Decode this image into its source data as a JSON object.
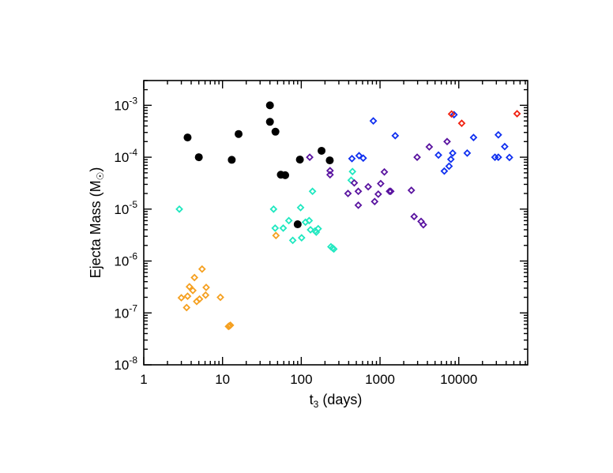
{
  "chart_data": {
    "type": "scatter",
    "title": "",
    "xlabel": "t",
    "xlabel_sub": "3",
    "xlabel_suffix": " (days)",
    "ylabel": "Ejecta Mass (M",
    "ylabel_sub": "☉",
    "ylabel_suffix": ")",
    "xscale": "log",
    "yscale": "log",
    "xlim": [
      1,
      75000
    ],
    "ylim": [
      1e-08,
      0.003
    ],
    "grid": false,
    "xticks": [
      {
        "value": 1,
        "label": "1"
      },
      {
        "value": 10,
        "label": "10"
      },
      {
        "value": 100,
        "label": "100"
      },
      {
        "value": 1000,
        "label": "1000"
      },
      {
        "value": 10000,
        "label": "10000"
      }
    ],
    "yticks": [
      {
        "value": 1e-08,
        "base": "10",
        "exp": "-8"
      },
      {
        "value": 1e-07,
        "base": "10",
        "exp": "-7"
      },
      {
        "value": 1e-06,
        "base": "10",
        "exp": "-6"
      },
      {
        "value": 1e-05,
        "base": "10",
        "exp": "-5"
      },
      {
        "value": 0.0001,
        "base": "10",
        "exp": "-4"
      },
      {
        "value": 0.001,
        "base": "10",
        "exp": "-3"
      }
    ],
    "series": [
      {
        "marker": "filled-circle",
        "color": "#000000",
        "points": [
          [
            3.6,
            0.00024
          ],
          [
            5.0,
            0.0001
          ],
          [
            13.1,
            8.9e-05
          ],
          [
            16,
            0.00028
          ],
          [
            40,
            0.001
          ],
          [
            40,
            0.00048
          ],
          [
            47,
            0.00031
          ],
          [
            55,
            4.6e-05
          ],
          [
            62.5,
            4.5e-05
          ],
          [
            96,
            9e-05
          ],
          [
            90,
            5.1e-06
          ],
          [
            181,
            0.000133
          ],
          [
            230,
            8.7e-05
          ]
        ]
      },
      {
        "marker": "open-diamond",
        "color": "#f5a020",
        "points": [
          [
            47.7,
            3.1e-06
          ],
          [
            5.5,
            7e-07
          ],
          [
            4.4,
            4.8e-07
          ],
          [
            3.8,
            3.2e-07
          ],
          [
            4.2,
            2.7e-07
          ],
          [
            6.2,
            3.1e-07
          ],
          [
            3.0,
            1.96e-07
          ],
          [
            3.6,
            2.1e-07
          ],
          [
            6.1,
            2.2e-07
          ],
          [
            4.7,
            1.66e-07
          ],
          [
            5.1,
            1.85e-07
          ],
          [
            3.5,
            1.27e-07
          ],
          [
            9.4,
            2e-07
          ],
          [
            11.9,
            5.5e-08
          ],
          [
            12.6,
            5.8e-08
          ],
          [
            12.2,
            5.6e-08
          ]
        ]
      },
      {
        "marker": "open-diamond",
        "color": "#20e8c0",
        "points": [
          [
            2.83,
            1e-05
          ],
          [
            44.5,
            1e-05
          ],
          [
            98,
            1.07e-05
          ],
          [
            139,
            2.2e-05
          ],
          [
            69.5,
            6e-06
          ],
          [
            46.6,
            4.3e-06
          ],
          [
            59,
            4.3e-06
          ],
          [
            78,
            2.5e-06
          ],
          [
            101,
            2.8e-06
          ],
          [
            113,
            5.6e-06
          ],
          [
            126,
            6e-06
          ],
          [
            131,
            4e-06
          ],
          [
            155,
            3.6e-06
          ],
          [
            164,
            4.2e-06
          ],
          [
            150,
            3.8e-06
          ],
          [
            238,
            1.88e-06
          ],
          [
            259,
            1.7e-06
          ],
          [
            250,
            1.78e-06
          ],
          [
            447,
            5.3e-05
          ],
          [
            430,
            3.6e-05
          ]
        ]
      },
      {
        "marker": "open-diamond",
        "color": "#5a14a0",
        "points": [
          [
            128,
            0.0001
          ],
          [
            232,
            5.5e-05
          ],
          [
            232,
            4.6e-05
          ],
          [
            392,
            2e-05
          ],
          [
            530,
            2.2e-05
          ],
          [
            530,
            1.19e-05
          ],
          [
            471,
            3.2e-05
          ],
          [
            708,
            2.7e-05
          ],
          [
            1020,
            3.1e-05
          ],
          [
            950,
            1.94e-05
          ],
          [
            855,
            1.4e-05
          ],
          [
            1135,
            5.2e-05
          ],
          [
            1320,
            2.2e-05
          ],
          [
            1370,
            2.2e-05
          ],
          [
            2500,
            2.3e-05
          ],
          [
            2960,
            0.0001
          ],
          [
            4220,
            0.000158
          ],
          [
            7110,
            0.0002
          ],
          [
            2710,
            7.2e-06
          ],
          [
            3320,
            5.8e-06
          ],
          [
            3550,
            5e-06
          ]
        ]
      },
      {
        "marker": "open-diamond",
        "color": "#1030f0",
        "points": [
          [
            822,
            0.0005
          ],
          [
            1560,
            0.00026
          ],
          [
            440,
            9.4e-05
          ],
          [
            542,
            0.000107
          ],
          [
            612,
            9.6e-05
          ],
          [
            5520,
            0.00011
          ],
          [
            8370,
            0.00012
          ],
          [
            7940,
            9.1e-05
          ],
          [
            7530,
            6.7e-05
          ],
          [
            6550,
            5.4e-05
          ],
          [
            12800,
            0.00012
          ],
          [
            15400,
            0.00024
          ],
          [
            31800,
            0.00027
          ],
          [
            38300,
            0.00016
          ],
          [
            28800,
            0.0001
          ],
          [
            31800,
            0.0001
          ],
          [
            44000,
            9.9e-05
          ],
          [
            8700,
            0.00066
          ]
        ]
      },
      {
        "marker": "open-diamond",
        "color": "#f02010",
        "points": [
          [
            8100,
            0.00068
          ],
          [
            10900,
            0.00045
          ],
          [
            55000,
            0.00069
          ]
        ]
      }
    ]
  }
}
